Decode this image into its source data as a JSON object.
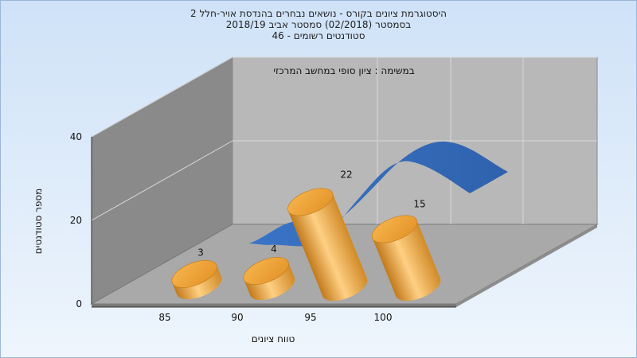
{
  "chart_data": {
    "type": "bar",
    "title_lines": [
      "היסטוגרמת ציונים בקורס - נושאים נבחרים בהנדסת אויר-חלל 2",
      "בסמסטר  (02/2018)  סמסטר אביב 2018/19",
      "סטודנטים רשומים - 46"
    ],
    "series_name": "במשימה : ציון סופי במחשב המרכזי",
    "categories": [
      "85",
      "90",
      "95",
      "100"
    ],
    "values": [
      3,
      4,
      22,
      15
    ],
    "xlabel": "טווח ציונים",
    "ylabel": "מספר סטודנטים",
    "yticks": [
      "0",
      "20",
      "40"
    ],
    "ylim": [
      0,
      40
    ],
    "grid": true,
    "colors": {
      "bar": "#f0a53a",
      "bar_dark": "#c27a1c",
      "bar_light": "#ffd083",
      "ribbon": "#3a74c6",
      "wall_left": "#8a8a8a",
      "wall_back": "#b8b8b8",
      "floor": "#a9a9a9",
      "background_top": "#cfe2f8",
      "background_bottom": "#e8f1fb"
    }
  }
}
